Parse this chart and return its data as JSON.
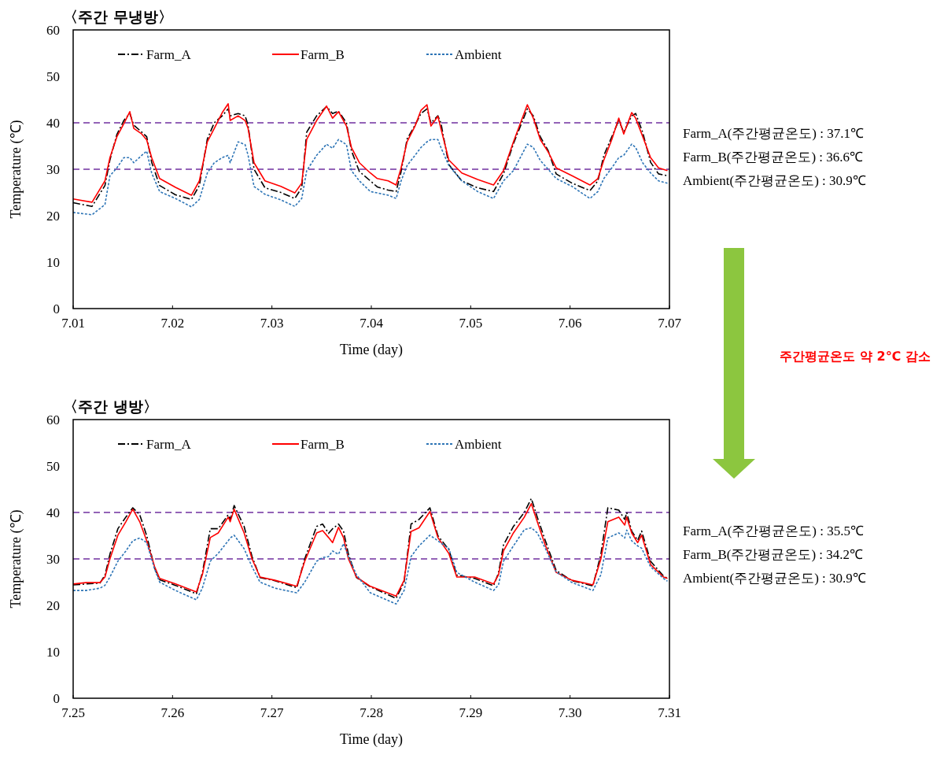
{
  "chart_data": [
    {
      "type": "line",
      "title": "〈주간 무냉방〉",
      "xlabel": "Time (day)",
      "ylabel": "Temperature (℃)",
      "xlim": [
        7.01,
        7.07
      ],
      "xticks": [
        {
          "value": 7.01,
          "label": "7.01"
        },
        {
          "value": 7.02,
          "label": "7.02"
        },
        {
          "value": 7.03,
          "label": "7.03"
        },
        {
          "value": 7.04,
          "label": "7.04"
        },
        {
          "value": 7.05,
          "label": "7.05"
        },
        {
          "value": 7.06,
          "label": "7.06"
        },
        {
          "value": 7.07,
          "label": "7.07"
        }
      ],
      "ylim": [
        0,
        60
      ],
      "yticks": [
        0,
        10,
        20,
        30,
        40,
        50,
        60
      ],
      "legend": "top",
      "x": [
        7.01,
        7.0119,
        7.0132,
        7.0137,
        7.0144,
        7.0151,
        7.0157,
        7.0161,
        7.0169,
        7.0174,
        7.0179,
        7.0187,
        7.0203,
        7.0219,
        7.0227,
        7.0235,
        7.0242,
        7.025,
        7.0256,
        7.0258,
        7.0266,
        7.0273,
        7.0276,
        7.0282,
        7.0293,
        7.0309,
        7.0323,
        7.033,
        7.0335,
        7.0345,
        7.0355,
        7.0361,
        7.0367,
        7.0375,
        7.038,
        7.0388,
        7.0399,
        7.0406,
        7.0417,
        7.0425,
        7.043,
        7.0436,
        7.0444,
        7.045,
        7.0456,
        7.046,
        7.0467,
        7.047,
        7.0478,
        7.0491,
        7.0507,
        7.0523,
        7.0533,
        7.0543,
        7.0557,
        7.0563,
        7.057,
        7.0578,
        7.0586,
        7.0602,
        7.062,
        7.0628,
        7.0634,
        7.0642,
        7.0649,
        7.0654,
        7.0662,
        7.0666,
        7.0673,
        7.0681,
        7.0689,
        7.0698
      ],
      "series": [
        {
          "name": "Farm_A",
          "color": "#000000",
          "line_style": "dashed",
          "values": [
            22.8,
            22,
            26.5,
            32,
            37.5,
            40.5,
            42,
            39.5,
            38,
            37,
            31.5,
            26.5,
            24.5,
            23.5,
            26.5,
            36.5,
            40,
            41.5,
            43,
            41.5,
            42,
            41.5,
            39.5,
            30,
            26,
            25,
            23.7,
            26,
            38,
            41.5,
            43.5,
            42,
            42.5,
            40,
            34,
            29.5,
            27.5,
            26.2,
            25.5,
            25.2,
            29.5,
            36.5,
            39.5,
            42,
            43,
            40,
            41.5,
            40,
            31,
            27.5,
            26,
            25.2,
            29,
            35.5,
            43,
            41.5,
            37,
            34,
            29,
            27,
            25.4,
            27.5,
            33,
            37,
            40.5,
            38,
            41.5,
            42,
            38,
            31.5,
            29,
            28.6
          ]
        },
        {
          "name": "Farm_B",
          "color": "#ff0000",
          "line_style": "solid",
          "values": [
            23.6,
            22.9,
            27.5,
            32.5,
            37,
            39.8,
            42.4,
            38.8,
            37.6,
            36.3,
            32.5,
            28,
            26.1,
            24.4,
            27.5,
            35.9,
            38.8,
            42.2,
            44.1,
            40.5,
            41.5,
            40.5,
            38.8,
            31.4,
            27.5,
            26.3,
            24.9,
            27,
            36.4,
            40.5,
            43.6,
            41,
            42.4,
            39.3,
            34.7,
            31.4,
            29.2,
            28,
            27.5,
            26.6,
            30.3,
            35.9,
            39.3,
            42.7,
            43.9,
            39.3,
            41.4,
            38.8,
            32,
            29.2,
            27.8,
            26.6,
            29.7,
            35.9,
            43.9,
            41,
            36.4,
            33.7,
            30.3,
            28.6,
            26.6,
            28,
            32,
            36.4,
            41,
            37.6,
            42.2,
            41,
            37.1,
            32.5,
            30.3,
            29.7
          ]
        },
        {
          "name": "Ambient",
          "color": "#2e75b6",
          "line_style": "dotted",
          "values": [
            20.7,
            20.2,
            22.4,
            28.6,
            30.3,
            32.5,
            32.5,
            31.4,
            33,
            33.9,
            29.2,
            25.2,
            23.7,
            21.9,
            23.5,
            29.2,
            31.4,
            32.5,
            33,
            31.4,
            35.9,
            35.3,
            33,
            26.3,
            24.6,
            23.4,
            22,
            23.7,
            29.7,
            33,
            35.4,
            34.5,
            36.4,
            35.3,
            29.7,
            27.5,
            25.2,
            24.9,
            24.4,
            23.7,
            27.5,
            30.8,
            33,
            34.7,
            35.9,
            36.4,
            36.4,
            34.7,
            30.8,
            27.5,
            25.2,
            23.7,
            27.5,
            29.7,
            35.4,
            34.7,
            31.9,
            30,
            28,
            26.3,
            23.7,
            25.2,
            28,
            30.3,
            32.5,
            33,
            35.4,
            34.7,
            31.4,
            29.2,
            27.5,
            27
          ]
        }
      ],
      "ref_lines": [
        {
          "axis": "y",
          "value": 40,
          "color": "#7030a0",
          "line_style": "dashed"
        },
        {
          "axis": "y",
          "value": 30,
          "color": "#7030a0",
          "line_style": "dashed"
        }
      ],
      "annotations": [
        "Farm_A(주간평균온도) : 37.1℃",
        "Farm_B(주간평균온도) : 36.6℃",
        "Ambient(주간평균온도) : 30.9℃",
        "주간평균온도 약 2℃ 감소"
      ]
    },
    {
      "type": "line",
      "title": "〈주간 냉방〉",
      "xlabel": "Time (day)",
      "ylabel": "Temperature (℃)",
      "xlim": [
        7.25,
        7.31
      ],
      "xticks": [
        {
          "value": 7.25,
          "label": "7.25"
        },
        {
          "value": 7.26,
          "label": "7.26"
        },
        {
          "value": 7.27,
          "label": "7.27"
        },
        {
          "value": 7.28,
          "label": "7.28"
        },
        {
          "value": 7.29,
          "label": "7.29"
        },
        {
          "value": 7.3,
          "label": "7.30"
        },
        {
          "value": 7.31,
          "label": "7.31"
        }
      ],
      "ylim": [
        0,
        60
      ],
      "yticks": [
        0,
        10,
        20,
        30,
        40,
        50,
        60
      ],
      "legend": "top",
      "x": [
        7.25,
        7.2513,
        7.2527,
        7.2532,
        7.2537,
        7.2545,
        7.2553,
        7.256,
        7.2567,
        7.2574,
        7.2582,
        7.2587,
        7.2603,
        7.2624,
        7.263,
        7.2638,
        7.2646,
        7.2656,
        7.2658,
        7.2662,
        7.2672,
        7.268,
        7.2688,
        7.2703,
        7.2725,
        7.2733,
        7.2745,
        7.2751,
        7.2757,
        7.2761,
        7.2767,
        7.2772,
        7.2777,
        7.2785,
        7.2799,
        7.2825,
        7.2833,
        7.284,
        7.2848,
        7.2859,
        7.2867,
        7.2878,
        7.2886,
        7.2904,
        7.2923,
        7.2928,
        7.2933,
        7.2943,
        7.2954,
        7.2961,
        7.2967,
        7.2975,
        7.2986,
        7.3002,
        7.3023,
        7.3031,
        7.3038,
        7.3049,
        7.3055,
        7.3057,
        7.3062,
        7.3068,
        7.3072,
        7.3081,
        7.3094,
        7.3098
      ],
      "series": [
        {
          "name": "Farm_A",
          "color": "#000000",
          "line_style": "dashed",
          "values": [
            24.4,
            24.6,
            24.8,
            26.5,
            31,
            36.5,
            39,
            41,
            39.5,
            35,
            28,
            25.5,
            24.3,
            22.5,
            27,
            36.5,
            36.5,
            39.5,
            38.5,
            41.5,
            37,
            30.5,
            26,
            25.3,
            23.8,
            30,
            37,
            37.5,
            35.5,
            36.5,
            37.5,
            36,
            31,
            26,
            24,
            21.5,
            25,
            37.5,
            38.5,
            41,
            35,
            32,
            26.5,
            25.8,
            24.2,
            27,
            33,
            37,
            40,
            43,
            39,
            34,
            27.5,
            25.3,
            24.2,
            31,
            41,
            40.5,
            38.5,
            40,
            36,
            34,
            36,
            29.5,
            26.3,
            25.8
          ]
        },
        {
          "name": "Farm_B",
          "color": "#ff0000",
          "line_style": "solid",
          "values": [
            24.6,
            24.9,
            24.9,
            26.1,
            30,
            35.1,
            38,
            40.7,
            38,
            33.9,
            28.3,
            25.8,
            24.6,
            22.9,
            26.6,
            34.6,
            35.6,
            39,
            38,
            40.7,
            35.6,
            30,
            26.1,
            25.4,
            24.1,
            29.5,
            35.6,
            36.1,
            34.6,
            33.5,
            36.8,
            34.6,
            30,
            26.1,
            24.1,
            22,
            25.4,
            35.9,
            36.7,
            40.2,
            34.6,
            31.2,
            26.1,
            26.1,
            24.6,
            26.6,
            31.7,
            35.6,
            39,
            41.9,
            38,
            33,
            27.1,
            25.4,
            24.4,
            30,
            38,
            39,
            37.3,
            39,
            35.6,
            33.5,
            35.1,
            28.8,
            26.1,
            25.8
          ]
        },
        {
          "name": "Ambient",
          "color": "#2e75b6",
          "line_style": "dotted",
          "values": [
            23.2,
            23.2,
            23.7,
            24.3,
            26.1,
            29.5,
            31.7,
            33.9,
            34.5,
            33.5,
            27.8,
            25,
            23.2,
            21.2,
            23.7,
            29.5,
            31.2,
            33.9,
            34.5,
            35.1,
            32.2,
            28.3,
            25,
            23.7,
            22.7,
            25,
            29.5,
            30.3,
            30.5,
            31.7,
            31,
            33.3,
            30.5,
            26.6,
            22.7,
            20.3,
            23.2,
            30.5,
            32.8,
            35.1,
            33.9,
            32.2,
            27.1,
            25,
            23.2,
            24.4,
            29.5,
            32.8,
            36.3,
            36.7,
            35.6,
            32.3,
            27.2,
            24.9,
            23.2,
            26.6,
            34.5,
            35.6,
            34.5,
            36.2,
            33.9,
            32.8,
            32.3,
            28.3,
            25.8,
            25.2
          ]
        }
      ],
      "ref_lines": [
        {
          "axis": "y",
          "value": 40,
          "color": "#7030a0",
          "line_style": "dashed"
        },
        {
          "axis": "y",
          "value": 30,
          "color": "#7030a0",
          "line_style": "dashed"
        }
      ],
      "annotations": [
        "Farm_A(주간평균온도) : 35.5℃",
        "Farm_B(주간평균온도) : 34.2℃",
        "Ambient(주간평균온도) : 30.9℃"
      ]
    }
  ]
}
